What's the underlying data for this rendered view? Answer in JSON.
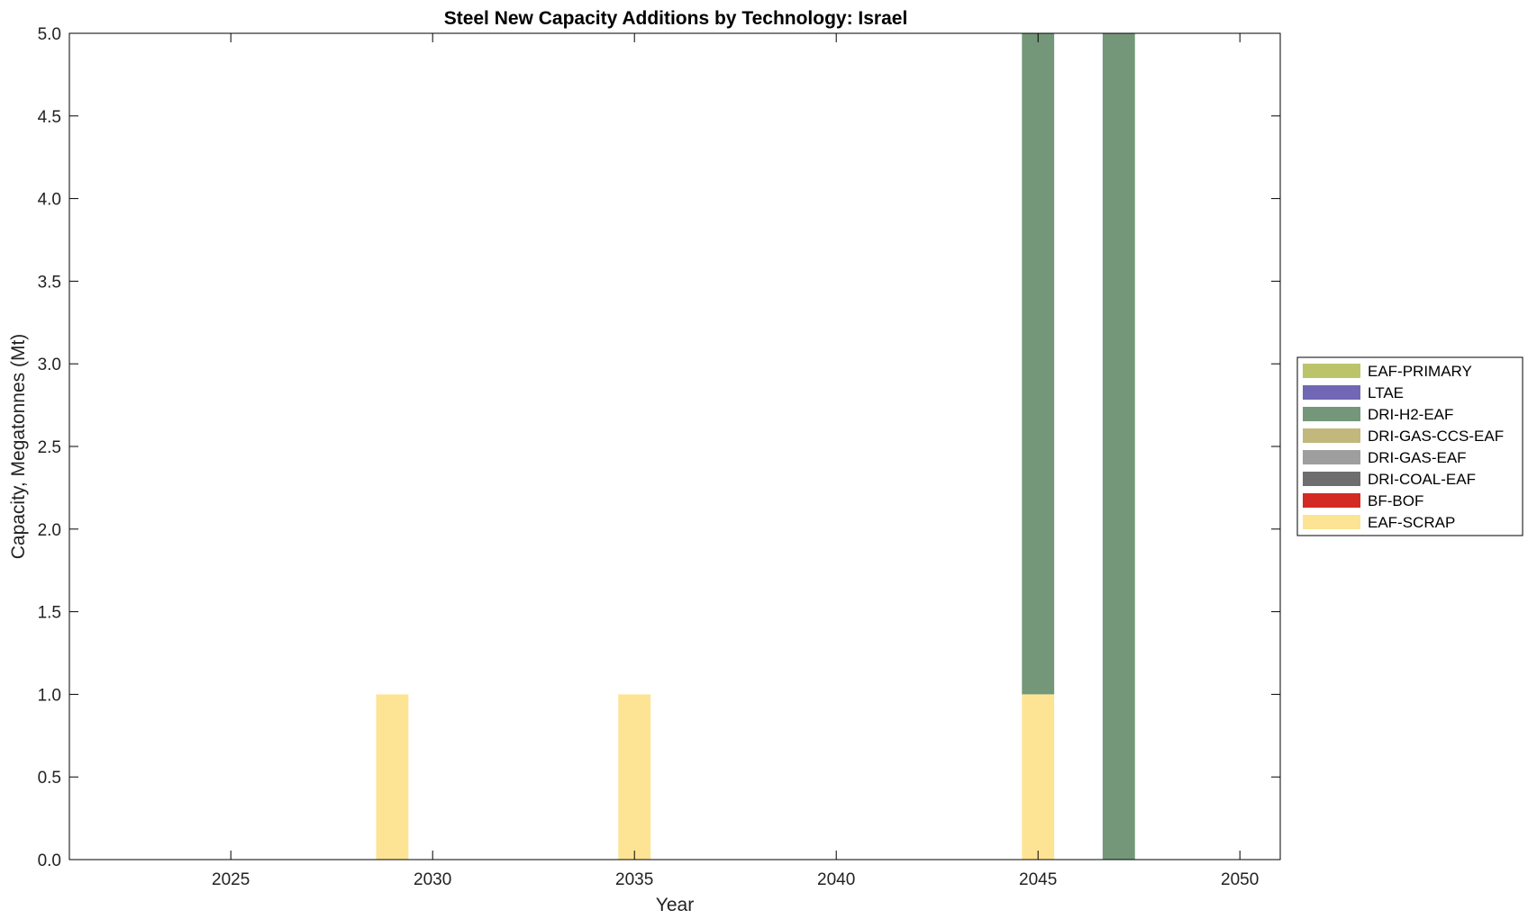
{
  "chart_data": {
    "type": "bar",
    "stacked": true,
    "title": "Steel New Capacity Additions by Technology: Israel",
    "xlabel": "Year",
    "ylabel": "Capacity, Megatonnes (Mt)",
    "xlim": [
      2021,
      2051
    ],
    "ylim": [
      0,
      5
    ],
    "xticks": [
      "2025",
      "2030",
      "2035",
      "2040",
      "2045",
      "2050"
    ],
    "yticks": [
      "0.0",
      "0.5",
      "1.0",
      "1.5",
      "2.0",
      "2.5",
      "3.0",
      "3.5",
      "4.0",
      "4.5",
      "5.0"
    ],
    "grid": false,
    "legend_position": "right",
    "categories": [
      2029,
      2035,
      2045,
      2047
    ],
    "series": [
      {
        "name": "EAF-SCRAP",
        "color": "#fde494",
        "values": [
          1,
          1,
          1,
          0
        ]
      },
      {
        "name": "BF-BOF",
        "color": "#d42a24",
        "values": [
          0,
          0,
          0,
          0
        ]
      },
      {
        "name": "DRI-COAL-EAF",
        "color": "#6e6e6e",
        "values": [
          0,
          0,
          0,
          0
        ]
      },
      {
        "name": "DRI-GAS-EAF",
        "color": "#9e9e9e",
        "values": [
          0,
          0,
          0,
          0
        ]
      },
      {
        "name": "DRI-GAS-CCS-EAF",
        "color": "#c2b77c",
        "values": [
          0,
          0,
          0,
          0
        ]
      },
      {
        "name": "DRI-H2-EAF",
        "color": "#74977a",
        "values": [
          0,
          0,
          4,
          5
        ]
      },
      {
        "name": "LTAE",
        "color": "#7068b4",
        "values": [
          0,
          0,
          0,
          0
        ]
      },
      {
        "name": "EAF-PRIMARY",
        "color": "#bcc46a",
        "values": [
          0,
          0,
          0,
          0
        ]
      }
    ],
    "legend_order": [
      "EAF-PRIMARY",
      "LTAE",
      "DRI-H2-EAF",
      "DRI-GAS-CCS-EAF",
      "DRI-GAS-EAF",
      "DRI-COAL-EAF",
      "BF-BOF",
      "EAF-SCRAP"
    ]
  }
}
